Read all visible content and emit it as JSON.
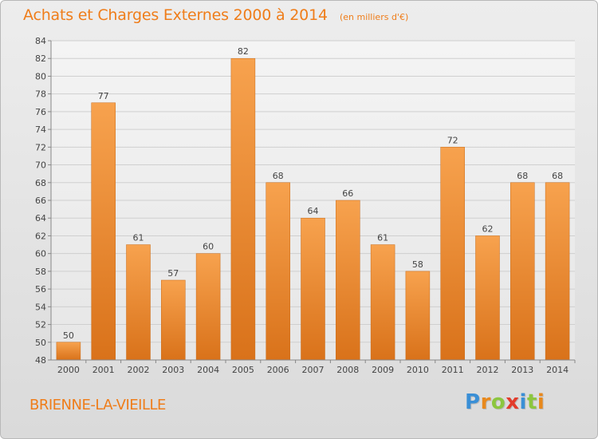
{
  "header": {
    "title": "Achats et Charges Externes 2000 à 2014",
    "unit": "(en milliers d'€)"
  },
  "footer": {
    "commune": "BRIENNE-LA-VIEILLE",
    "logo_letters": [
      "P",
      "r",
      "o",
      "x",
      "i",
      "t",
      "i"
    ],
    "logo_colors": [
      "#3a8fd6",
      "#e8891d",
      "#8cc63f",
      "#e23c2c",
      "#3a8fd6",
      "#8cc63f",
      "#e8891d"
    ]
  },
  "chart_data": {
    "type": "bar",
    "categories": [
      "2000",
      "2001",
      "2002",
      "2003",
      "2004",
      "2005",
      "2006",
      "2007",
      "2008",
      "2009",
      "2010",
      "2011",
      "2012",
      "2013",
      "2014"
    ],
    "values": [
      50,
      77,
      61,
      57,
      60,
      82,
      68,
      64,
      66,
      61,
      58,
      72,
      62,
      68,
      68
    ],
    "title": "Achats et Charges Externes 2000 à 2014",
    "ylim": [
      48,
      84
    ],
    "yticks": [
      48,
      50,
      52,
      54,
      56,
      58,
      60,
      62,
      64,
      66,
      68,
      70,
      72,
      74,
      76,
      78,
      80,
      82,
      84
    ],
    "grid": true,
    "bar_color_top": "#f7a24e",
    "bar_color_bottom": "#d9721a"
  }
}
